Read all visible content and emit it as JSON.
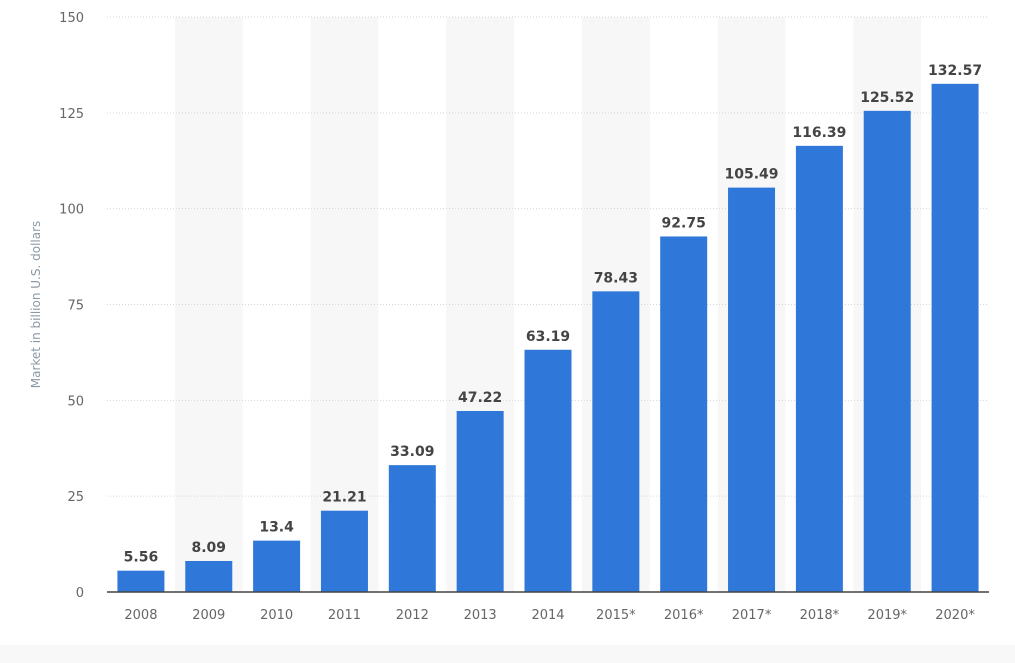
{
  "chart_data": {
    "type": "bar",
    "title": "",
    "xlabel": "",
    "ylabel": "Market in billion U.S. dollars",
    "ylim": [
      0,
      150
    ],
    "yticks": [
      0,
      25,
      50,
      75,
      100,
      125,
      150
    ],
    "grid": true,
    "categories": [
      "2008",
      "2009",
      "2010",
      "2011",
      "2012",
      "2013",
      "2014",
      "2015*",
      "2016*",
      "2017*",
      "2018*",
      "2019*",
      "2020*"
    ],
    "values": [
      5.56,
      8.09,
      13.4,
      21.21,
      33.09,
      47.22,
      63.19,
      78.43,
      92.75,
      105.49,
      116.39,
      125.52,
      132.57
    ],
    "value_labels": [
      "5.56",
      "8.09",
      "13.4",
      "21.21",
      "33.09",
      "47.22",
      "63.19",
      "78.43",
      "92.75",
      "105.49",
      "116.39",
      "125.52",
      "132.57"
    ],
    "colors": {
      "bar": "#2f78d9",
      "band": "#f7f7f7",
      "grid": "#d6d6d6",
      "axis": "#444444"
    }
  }
}
